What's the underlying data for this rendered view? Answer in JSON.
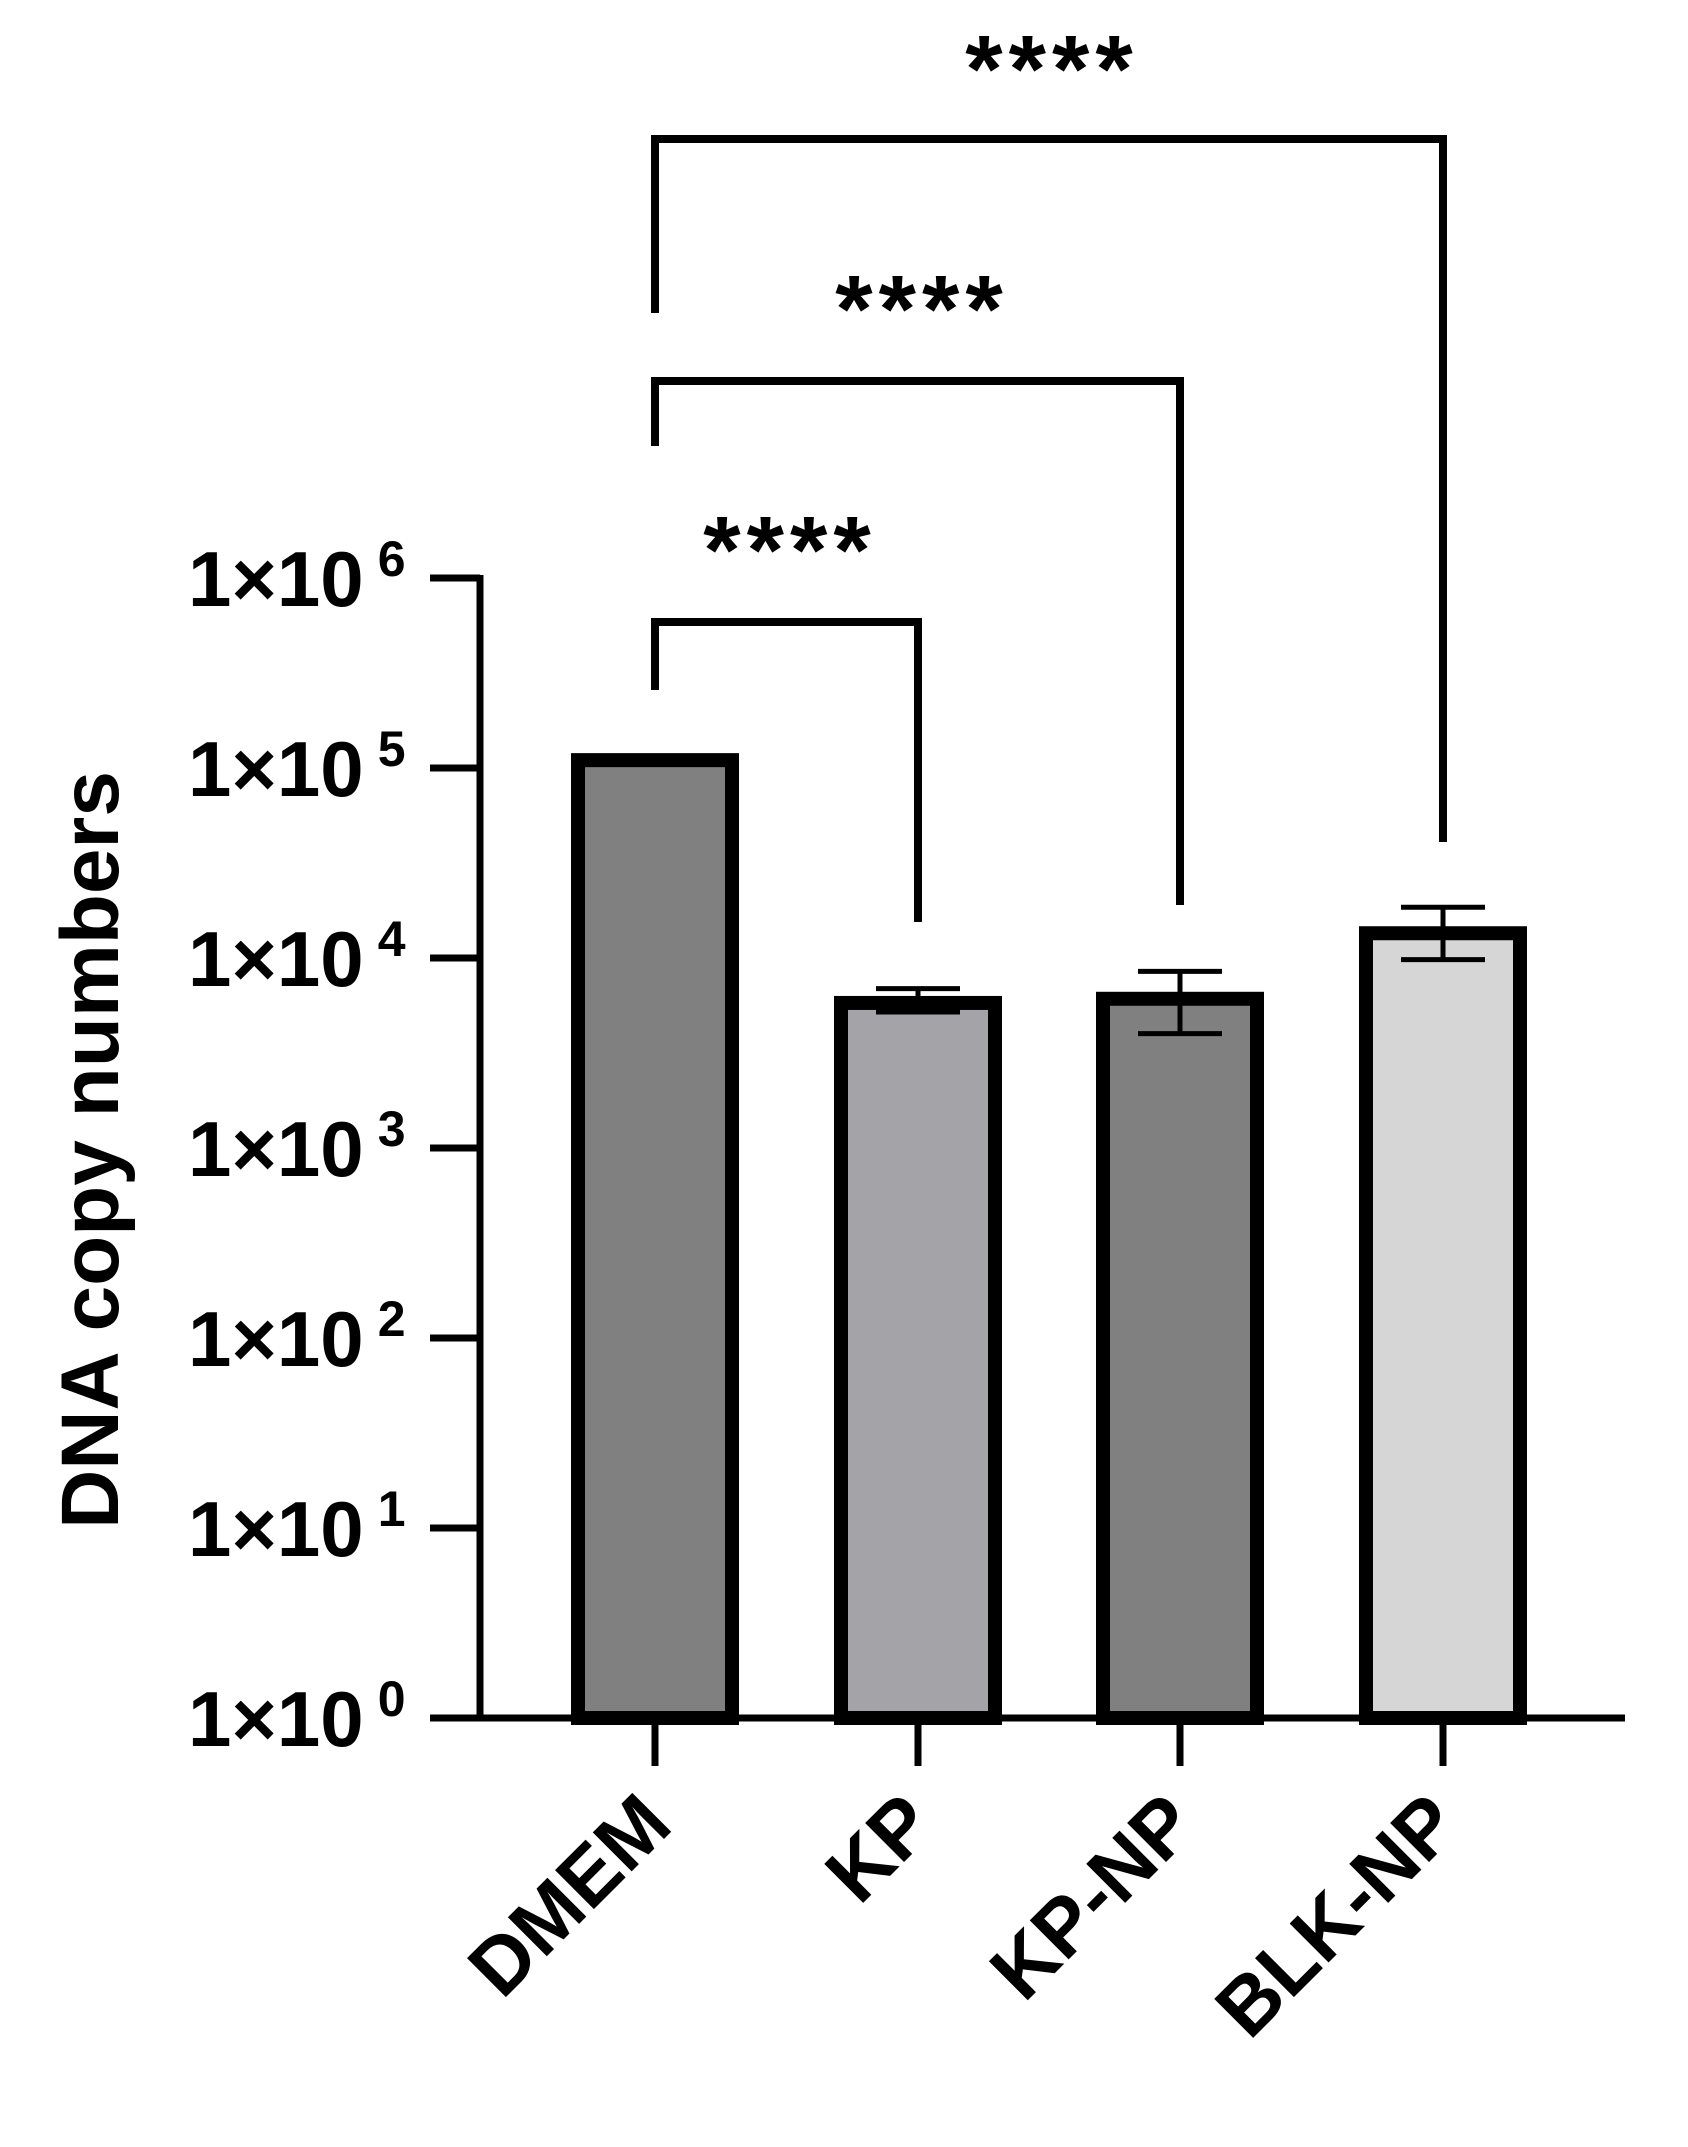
{
  "chart_data": {
    "type": "bar",
    "title": "",
    "xlabel": "",
    "ylabel": "DNA copy numbers",
    "yscale": "log",
    "ylim": [
      1,
      1000000
    ],
    "yticks": [
      {
        "value": 1,
        "base": "1×10",
        "exp": "0"
      },
      {
        "value": 10,
        "base": "1×10",
        "exp": "1"
      },
      {
        "value": 100,
        "base": "1×10",
        "exp": "2"
      },
      {
        "value": 1000,
        "base": "1×10",
        "exp": "3"
      },
      {
        "value": 10000,
        "base": "1×10",
        "exp": "4"
      },
      {
        "value": 100000,
        "base": "1×10",
        "exp": "5"
      },
      {
        "value": 1000000,
        "base": "1×10",
        "exp": "6"
      }
    ],
    "categories": [
      "DMEM",
      "KP",
      "KP-NP",
      "BLK-NP"
    ],
    "values": [
      110000,
      5800,
      6100,
      13500
    ],
    "error_low": [
      110000,
      5200,
      4000,
      9800
    ],
    "error_high": [
      115000,
      6900,
      8500,
      18500
    ],
    "colors": [
      "#808080",
      "#a4a4a8",
      "#808080",
      "#d6d6d6"
    ],
    "comparisons": [
      {
        "from": "DMEM",
        "to": "KP",
        "label": "****"
      },
      {
        "from": "DMEM",
        "to": "KP-NP",
        "label": "****"
      },
      {
        "from": "DMEM",
        "to": "BLK-NP",
        "label": "****"
      }
    ],
    "grid": false,
    "legend": "none"
  }
}
